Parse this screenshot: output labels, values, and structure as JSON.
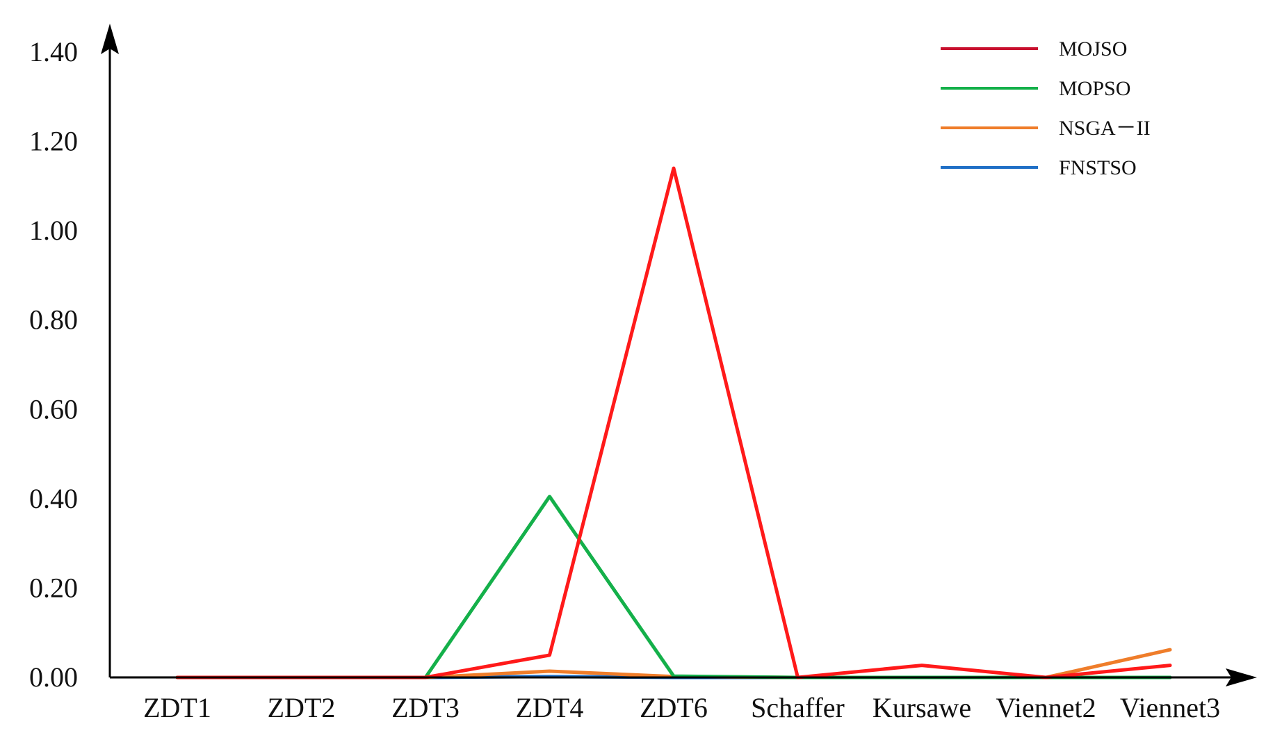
{
  "chart_data": {
    "type": "line",
    "title": "",
    "xlabel": "",
    "ylabel": "",
    "categories": [
      "ZDT1",
      "ZDT2",
      "ZDT3",
      "ZDT4",
      "ZDT6",
      "Schaffer",
      "Kursawe",
      "Viennet2",
      "Viennet3"
    ],
    "ylim": [
      0,
      1.4
    ],
    "yticks": [
      "0.00",
      "0.20",
      "0.40",
      "0.60",
      "0.80",
      "1.00",
      "1.20",
      "1.40"
    ],
    "grid": false,
    "legend_position": "top-right",
    "series": [
      {
        "name": "MOJSO",
        "color": "#ff1a1a",
        "values": [
          0.0,
          0.0,
          0.0,
          0.05,
          1.14,
          0.0,
          0.027,
          0.0,
          0.027
        ]
      },
      {
        "name": "MOPSO",
        "color": "#14b04a",
        "values": [
          0.0,
          0.0,
          0.0,
          0.405,
          0.003,
          0.0,
          0.0,
          0.0,
          0.0
        ]
      },
      {
        "name": "NSGA－II",
        "color": "#ef7d2a",
        "values": [
          0.0,
          0.0,
          0.0,
          0.014,
          0.002,
          0.0,
          0.0,
          0.0,
          0.062
        ]
      },
      {
        "name": "FNSTSO",
        "color": "#1f6fc6",
        "values": [
          0.0,
          0.0,
          0.0,
          0.002,
          0.0,
          0.0,
          0.0,
          0.0,
          0.0
        ]
      }
    ],
    "legend_line_colors": {
      "MOJSO": "#c8102e",
      "MOPSO": "#14b04a",
      "NSGA－II": "#ef7d2a",
      "FNSTSO": "#1f6fc6"
    }
  }
}
